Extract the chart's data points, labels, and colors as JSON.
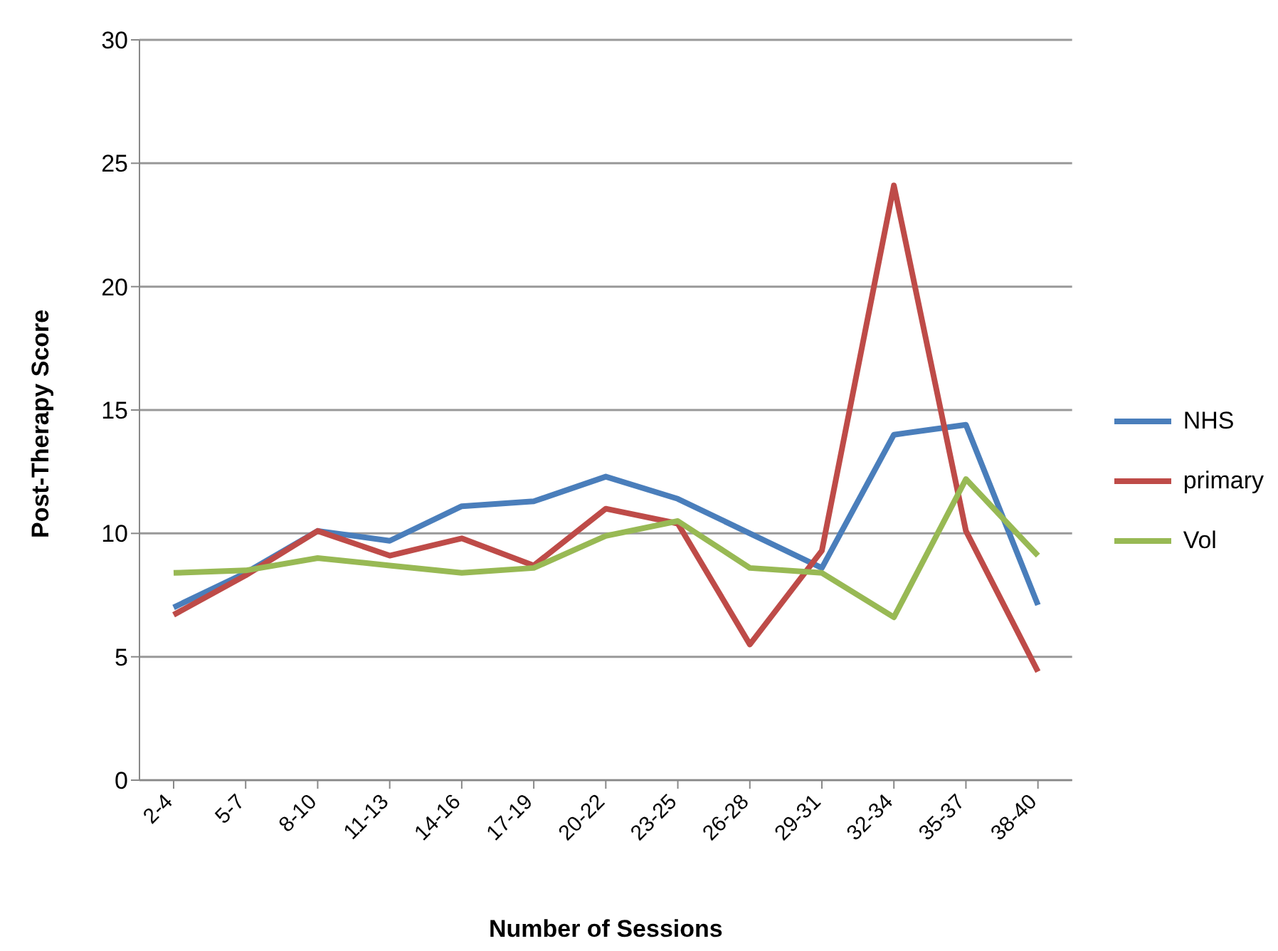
{
  "chart_data": {
    "type": "line",
    "xlabel": "Number of Sessions",
    "ylabel": "Post-Therapy Score",
    "categories": [
      "2-4",
      "5-7",
      "8-10",
      "11-13",
      "14-16",
      "17-19",
      "20-22",
      "23-25",
      "26-28",
      "29-31",
      "32-34",
      "35-37",
      "38-40"
    ],
    "series": [
      {
        "name": "NHS",
        "color": "#4a7ebb",
        "values": [
          7.0,
          8.4,
          10.1,
          9.7,
          11.1,
          11.3,
          12.3,
          11.4,
          10.0,
          8.6,
          14.0,
          14.4,
          7.1
        ]
      },
      {
        "name": "primary",
        "color": "#be4b48",
        "values": [
          6.7,
          8.3,
          10.1,
          9.1,
          9.8,
          8.7,
          11.0,
          10.4,
          5.5,
          9.3,
          24.1,
          10.1,
          4.4
        ]
      },
      {
        "name": "Vol",
        "color": "#98b954",
        "values": [
          8.4,
          8.5,
          9.0,
          8.7,
          8.4,
          8.6,
          9.9,
          10.5,
          8.6,
          8.4,
          6.6,
          12.2,
          9.1
        ]
      }
    ],
    "ylim": [
      0,
      30
    ],
    "yticks": [
      0,
      5,
      10,
      15,
      20,
      25,
      30
    ],
    "grid": "y",
    "legend": "right",
    "marker": "none",
    "line_style": "solid"
  }
}
